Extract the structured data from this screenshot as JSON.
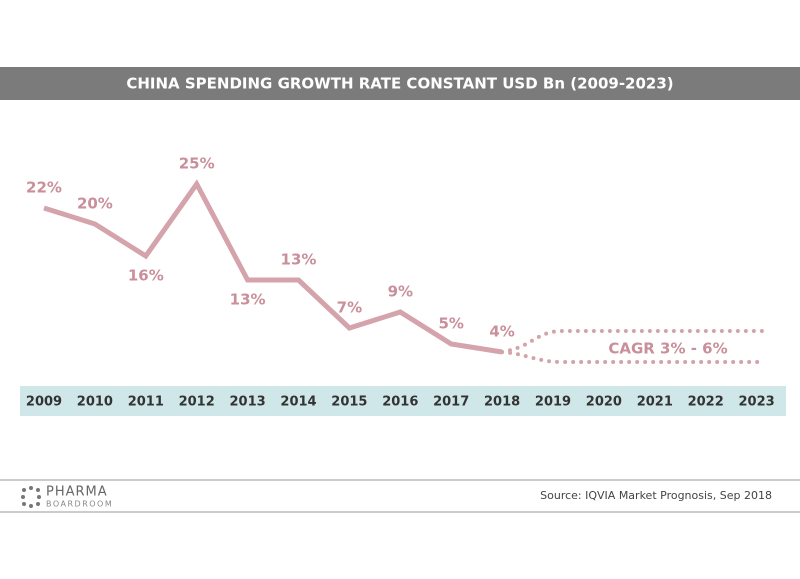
{
  "chart_data": {
    "type": "line",
    "title": "CHINA SPENDING GROWTH RATE CONSTANT USD Bn (2009-2023)",
    "categories": [
      "2009",
      "2010",
      "2011",
      "2012",
      "2013",
      "2014",
      "2015",
      "2016",
      "2017",
      "2018",
      "2019",
      "2020",
      "2021",
      "2022",
      "2023"
    ],
    "series": [
      {
        "color": "#d4a3ab",
        "values": [
          22,
          20,
          16,
          25,
          13,
          13,
          7,
          9,
          5,
          4,
          null,
          null,
          null,
          null,
          null
        ],
        "value_labels": [
          "22%",
          "20%",
          "16%",
          "25%",
          "13%",
          "13%",
          "7%",
          "9%",
          "5%",
          "4%",
          null,
          null,
          null,
          null,
          null
        ]
      }
    ],
    "annotation": "CAGR 3% - 6%",
    "source": "Source: IQVIA Market Prognosis, Sep 2018",
    "logo": {
      "line1": "PHARMA",
      "line2": "BOARDROOM"
    }
  }
}
